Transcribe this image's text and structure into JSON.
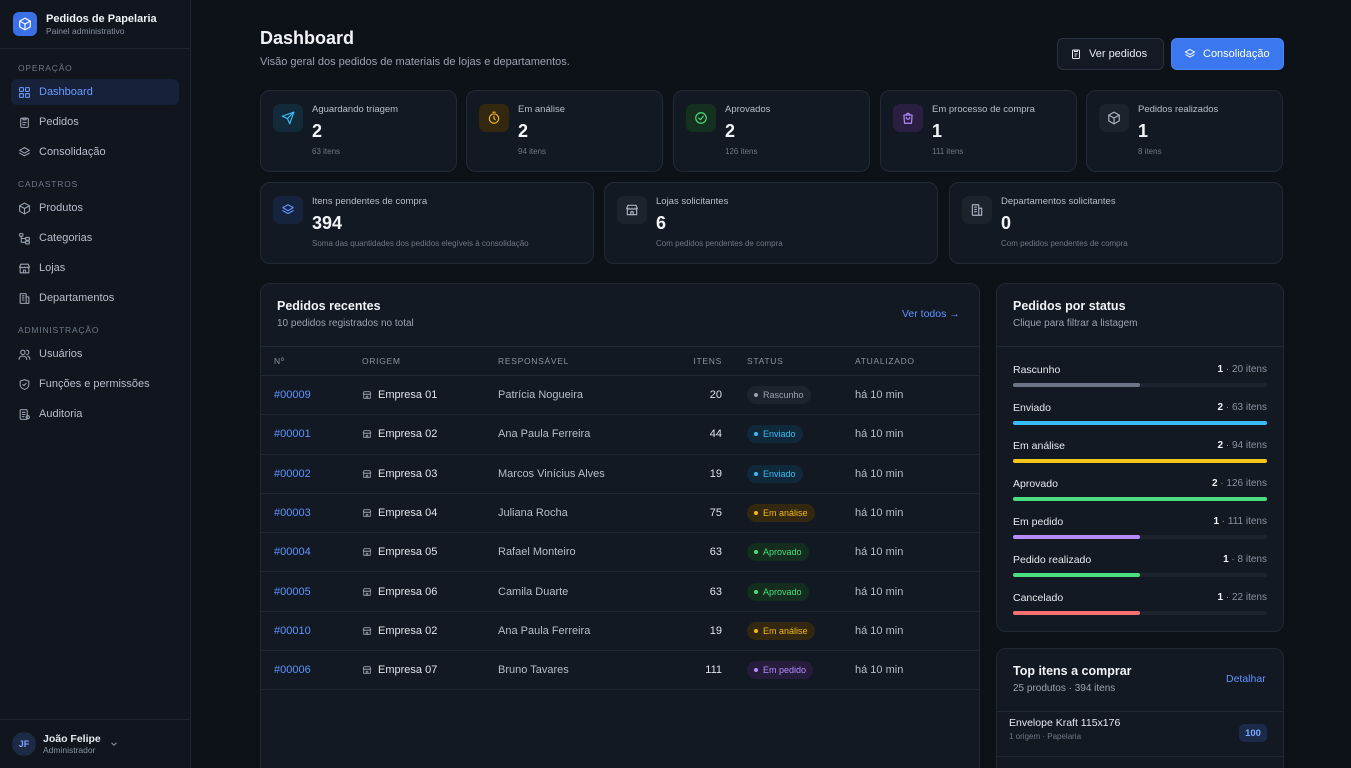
{
  "brand": {
    "title": "Pedidos de Papelaria",
    "subtitle": "Painel administrativo"
  },
  "sidebar": {
    "sections": [
      {
        "label": "OPERAÇÃO",
        "items": [
          {
            "label": "Dashboard",
            "icon": "grid-icon",
            "active": true
          },
          {
            "label": "Pedidos",
            "icon": "clipboard-icon"
          },
          {
            "label": "Consolidação",
            "icon": "layers-icon"
          }
        ]
      },
      {
        "label": "CADASTROS",
        "items": [
          {
            "label": "Produtos",
            "icon": "box-icon"
          },
          {
            "label": "Categorias",
            "icon": "tree-icon"
          },
          {
            "label": "Lojas",
            "icon": "store-icon"
          },
          {
            "label": "Departamentos",
            "icon": "building-icon"
          }
        ]
      },
      {
        "label": "ADMINISTRAÇÃO",
        "items": [
          {
            "label": "Usuários",
            "icon": "users-icon"
          },
          {
            "label": "Funções e permissões",
            "icon": "shield-icon"
          },
          {
            "label": "Auditoria",
            "icon": "audit-icon"
          }
        ]
      }
    ],
    "user": {
      "initials": "JF",
      "name": "João Felipe",
      "role": "Administrador"
    }
  },
  "header": {
    "title": "Dashboard",
    "subtitle": "Visão geral dos pedidos de materiais de lojas e departamentos.",
    "btn_orders": "Ver pedidos",
    "btn_consolidation": "Consolidação"
  },
  "stats": [
    {
      "label": "Aguardando triagem",
      "value": "2",
      "sub": "63 itens",
      "icon": "send-icon",
      "color": "#38bdf8",
      "bg": "#132a3a"
    },
    {
      "label": "Em análise",
      "value": "2",
      "sub": "94 itens",
      "icon": "timer-icon",
      "color": "#f5b81c",
      "bg": "#33280f"
    },
    {
      "label": "Aprovados",
      "value": "2",
      "sub": "126 itens",
      "icon": "check-circle-icon",
      "color": "#4ade80",
      "bg": "#14301f"
    },
    {
      "label": "Em processo de compra",
      "value": "1",
      "sub": "111 itens",
      "icon": "shopping-bag-icon",
      "color": "#b88cff",
      "bg": "#2a1f40"
    },
    {
      "label": "Pedidos realizados",
      "value": "1",
      "sub": "8 itens",
      "icon": "package-icon",
      "color": "#aab2c0",
      "bg": "#1d232d"
    }
  ],
  "stats2": [
    {
      "label": "Itens pendentes de compra",
      "value": "394",
      "sub": "Soma das quantidades dos pedidos elegíveis à consolidação",
      "icon": "layers-icon",
      "color": "#5e93ff",
      "bg": "#16233d"
    },
    {
      "label": "Lojas solicitantes",
      "value": "6",
      "sub": "Com pedidos pendentes de compra",
      "icon": "store-icon",
      "color": "#aab2c0",
      "bg": "#1d232d"
    },
    {
      "label": "Departamentos solicitantes",
      "value": "0",
      "sub": "Com pedidos pendentes de compra",
      "icon": "building-icon",
      "color": "#aab2c0",
      "bg": "#1d232d"
    }
  ],
  "recent": {
    "title": "Pedidos recentes",
    "subtitle": "10 pedidos registrados no total",
    "link": "Ver todos →",
    "columns": [
      "Nº",
      "ORIGEM",
      "RESPONSÁVEL",
      "ITENS",
      "STATUS",
      "ATUALIZADO"
    ],
    "rows": [
      {
        "no": "#00009",
        "origin": "Empresa 01",
        "resp": "Patrícia Nogueira",
        "items": "20",
        "status": "Rascunho",
        "color": "#9aa3b2",
        "bg": "#1e242e",
        "updated": "há 10 min"
      },
      {
        "no": "#00001",
        "origin": "Empresa 02",
        "resp": "Ana Paula Ferreira",
        "items": "44",
        "status": "Enviado",
        "color": "#38bdf8",
        "bg": "#10293a",
        "updated": "há 10 min"
      },
      {
        "no": "#00002",
        "origin": "Empresa 03",
        "resp": "Marcos Vinícius Alves",
        "items": "19",
        "status": "Enviado",
        "color": "#38bdf8",
        "bg": "#10293a",
        "updated": "há 10 min"
      },
      {
        "no": "#00003",
        "origin": "Empresa 04",
        "resp": "Juliana Rocha",
        "items": "75",
        "status": "Em análise",
        "color": "#f5b81c",
        "bg": "#33280f",
        "updated": "há 10 min"
      },
      {
        "no": "#00004",
        "origin": "Empresa 05",
        "resp": "Rafael Monteiro",
        "items": "63",
        "status": "Aprovado",
        "color": "#4ade80",
        "bg": "#132e1e",
        "updated": "há 10 min"
      },
      {
        "no": "#00005",
        "origin": "Empresa 06",
        "resp": "Camila Duarte",
        "items": "63",
        "status": "Aprovado",
        "color": "#4ade80",
        "bg": "#132e1e",
        "updated": "há 10 min"
      },
      {
        "no": "#00010",
        "origin": "Empresa 02",
        "resp": "Ana Paula Ferreira",
        "items": "19",
        "status": "Em análise",
        "color": "#f5b81c",
        "bg": "#33280f",
        "updated": "há 10 min"
      },
      {
        "no": "#00006",
        "origin": "Empresa 07",
        "resp": "Bruno Tavares",
        "items": "111",
        "status": "Em pedido",
        "color": "#b88cff",
        "bg": "#261d3c",
        "updated": "há 10 min"
      }
    ]
  },
  "by_status": {
    "title": "Pedidos por status",
    "subtitle": "Clique para filtrar a listagem",
    "rows": [
      {
        "name": "Rascunho",
        "count": "1",
        "items": " · 20 itens",
        "fraction": 0.5,
        "color": "#6b7585"
      },
      {
        "name": "Enviado",
        "count": "2",
        "items": " · 63 itens",
        "fraction": 1.0,
        "color": "#38bdf8"
      },
      {
        "name": "Em análise",
        "count": "2",
        "items": " · 94 itens",
        "fraction": 1.0,
        "color": "#f5c518"
      },
      {
        "name": "Aprovado",
        "count": "2",
        "items": " · 126 itens",
        "fraction": 1.0,
        "color": "#4ade80"
      },
      {
        "name": "Em pedido",
        "count": "1",
        "items": " · 111 itens",
        "fraction": 0.5,
        "color": "#b88cff"
      },
      {
        "name": "Pedido realizado",
        "count": "1",
        "items": " · 8 itens",
        "fraction": 0.5,
        "color": "#4ade80"
      },
      {
        "name": "Cancelado",
        "count": "1",
        "items": " · 22 itens",
        "fraction": 0.5,
        "color": "#f87171"
      }
    ]
  },
  "top_items": {
    "title": "Top itens a comprar",
    "subtitle": "25 produtos · 394 itens",
    "link": "Detalhar",
    "first": {
      "name": "Envelope Kraft 115x176",
      "meta": "1 origem · Papelaria",
      "qty": "100"
    }
  }
}
